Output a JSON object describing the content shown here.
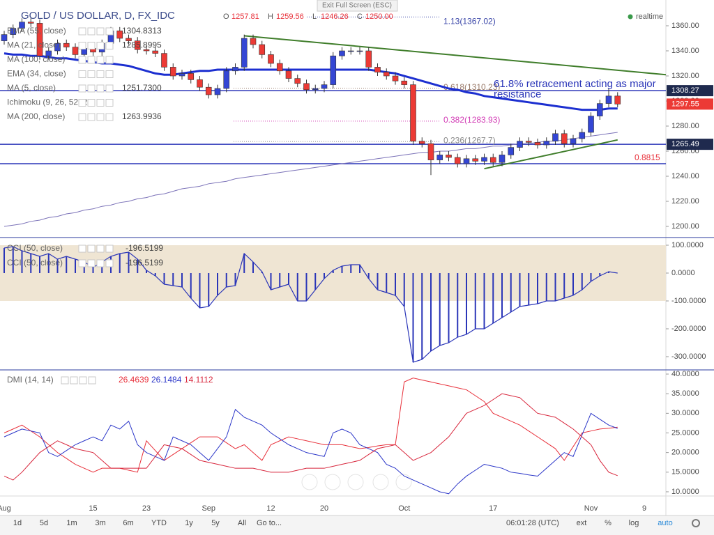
{
  "ui": {
    "exit_button": "Exit Full Screen (ESC)",
    "realtime": "realtime",
    "ohlc": [
      {
        "key": "O",
        "value": "1257.81"
      },
      {
        "key": "H",
        "value": "1259.56"
      },
      {
        "key": "L",
        "value": "1246.26"
      },
      {
        "key": "C",
        "value": "1250.00"
      }
    ],
    "indicators": [
      {
        "name": "EMA (55, close)",
        "value": "1304.8313"
      },
      {
        "name": "MA (21, close)",
        "value": "1285.8995"
      },
      {
        "name": "MA (100, close)"
      },
      {
        "name": "EMA (34, close)"
      },
      {
        "name": "MA (5, close)",
        "value": "1251.7300"
      },
      {
        "name": "Ichimoku (9, 26, 52, 26)"
      },
      {
        "name": "MA (200, close)",
        "value": "1263.9936"
      }
    ],
    "cci_legend": [
      {
        "name": "CCI (50, close)",
        "value": "-196.5199"
      },
      {
        "name": "CCI (50, close)",
        "value": "-196.5199"
      }
    ],
    "dmi_legend": "DMI (14, 14)",
    "ranges": [
      "1d",
      "5d",
      "1m",
      "3m",
      "6m",
      "YTD",
      "1y",
      "5y",
      "All"
    ],
    "goto": "Go to...",
    "clock": "06:01:28 (UTC)",
    "options": [
      "ext",
      "%",
      "log",
      "auto"
    ]
  },
  "chart_data": [
    {
      "type": "candlestick",
      "title": "GOLD / US DOLLAR, D, FX_IDC",
      "categories": [
        "Aug",
        null,
        null,
        null,
        null,
        null,
        null,
        null,
        null,
        null,
        "15",
        null,
        null,
        null,
        null,
        null,
        "23",
        null,
        null,
        null,
        null,
        null,
        null,
        "Sep",
        null,
        null,
        null,
        null,
        null,
        null,
        "12",
        null,
        null,
        null,
        null,
        null,
        "20",
        null,
        null,
        null,
        null,
        null,
        null,
        null,
        null,
        "Oct",
        null,
        null,
        null,
        null,
        null,
        null,
        null,
        null,
        null,
        "17",
        null,
        null,
        null,
        null,
        null,
        null,
        null,
        null,
        null,
        null,
        "Nov",
        null,
        null,
        null,
        null,
        null,
        "9"
      ],
      "open": [
        1348,
        1353,
        1358,
        1363,
        1362,
        1336,
        1340,
        1346,
        1343,
        1337,
        1342,
        1339,
        1346,
        1356,
        1350,
        1348,
        1341,
        1340,
        1338,
        1327,
        1320,
        1322,
        1317,
        1311,
        1305,
        1310,
        1324,
        1327,
        1350,
        1345,
        1337,
        1330,
        1324,
        1318,
        1314,
        1309,
        1310,
        1313,
        1336,
        1340,
        1340,
        1340,
        1327,
        1323,
        1320,
        1316,
        1313,
        1268,
        1266,
        1253,
        1257,
        1255,
        1250,
        1254,
        1252,
        1255,
        1251,
        1257,
        1263,
        1268,
        1267,
        1265,
        1268,
        1274,
        1266,
        1270,
        1275,
        1288,
        1298,
        1304,
        null,
        null,
        null
      ],
      "high": [
        1356,
        1361,
        1366,
        1366,
        1365,
        1343,
        1349,
        1349,
        1346,
        1345,
        1345,
        1349,
        1359,
        1359,
        1353,
        1351,
        1344,
        1343,
        1341,
        1330,
        1325,
        1325,
        1320,
        1314,
        1313,
        1327,
        1330,
        1353,
        1353,
        1348,
        1340,
        1333,
        1327,
        1321,
        1317,
        1313,
        1316,
        1339,
        1343,
        1343,
        1343,
        1343,
        1330,
        1326,
        1323,
        1319,
        1316,
        1271,
        1269,
        1260,
        1260,
        1258,
        1257,
        1257,
        1258,
        1258,
        1260,
        1266,
        1271,
        1271,
        1270,
        1271,
        1277,
        1277,
        1273,
        1278,
        1291,
        1301,
        1310,
        1307,
        null,
        null,
        null
      ],
      "low": [
        1345,
        1350,
        1355,
        1359,
        1333,
        1333,
        1337,
        1340,
        1334,
        1334,
        1336,
        1336,
        1343,
        1347,
        1345,
        1338,
        1337,
        1335,
        1324,
        1317,
        1317,
        1314,
        1308,
        1302,
        1302,
        1307,
        1321,
        1324,
        1342,
        1334,
        1327,
        1321,
        1315,
        1311,
        1306,
        1306,
        1307,
        1310,
        1333,
        1337,
        1337,
        1324,
        1320,
        1317,
        1313,
        1310,
        1265,
        1263,
        1241,
        1250,
        1252,
        1247,
        1247,
        1249,
        1249,
        1248,
        1248,
        1254,
        1260,
        1264,
        1262,
        1262,
        1265,
        1263,
        1263,
        1267,
        1272,
        1285,
        1295,
        1295,
        null,
        null,
        null
      ],
      "close": [
        1353,
        1358,
        1363,
        1362,
        1336,
        1340,
        1346,
        1343,
        1337,
        1342,
        1339,
        1346,
        1356,
        1350,
        1348,
        1341,
        1340,
        1338,
        1327,
        1320,
        1322,
        1317,
        1311,
        1305,
        1310,
        1324,
        1327,
        1350,
        1345,
        1337,
        1330,
        1324,
        1318,
        1314,
        1309,
        1310,
        1313,
        1336,
        1340,
        1340,
        1340,
        1327,
        1323,
        1320,
        1316,
        1313,
        1268,
        1266,
        1253,
        1257,
        1255,
        1250,
        1254,
        1252,
        1255,
        1251,
        1257,
        1263,
        1268,
        1267,
        1265,
        1268,
        1274,
        1266,
        1270,
        1275,
        1288,
        1298,
        1304,
        1297.55,
        null,
        null,
        null
      ],
      "up_color": "#3446d4",
      "down_color": "#ec3a35",
      "lines": [
        {
          "color": "#1c2fd0",
          "width": 3,
          "values": [
            1338,
            1337,
            1337,
            1336,
            1336,
            1335,
            1334,
            1334,
            1333,
            1332,
            1331,
            1330,
            1330,
            1329,
            1328,
            1326,
            1324,
            1322,
            1321,
            1321,
            1322,
            1323,
            1324,
            1324,
            1325,
            1325,
            1325,
            1325,
            1325,
            1325,
            1325,
            1325,
            1325,
            1325,
            1325,
            1325,
            1325,
            1325,
            1325,
            1325,
            1325,
            1325,
            1324,
            1323,
            1322,
            1320,
            1318,
            1316,
            1314,
            1312,
            1310,
            1309,
            1307,
            1306,
            1304,
            1303,
            1302,
            1301,
            1300,
            1299,
            1298,
            1297,
            1296,
            1295,
            1294,
            1293,
            1293,
            1293,
            1294,
            1294,
            null,
            null,
            null
          ]
        },
        {
          "color": "#7b72b8",
          "width": 1,
          "values": [
            1200,
            1201,
            1202,
            1204,
            1205,
            1207,
            1208,
            1210,
            1211,
            1213,
            1214,
            1216,
            1217,
            1219,
            1220,
            1222,
            1223,
            1225,
            1226,
            1228,
            1230,
            1231,
            1232,
            1234,
            1235,
            1236,
            1238,
            1239,
            1240,
            1241,
            1242,
            1243,
            1244,
            1245,
            1246,
            1247,
            1248,
            1249,
            1250,
            1251,
            1252,
            1253,
            1254,
            1255,
            1256,
            1257,
            1258,
            1259,
            1259,
            1260,
            1260,
            1261,
            1262,
            1262,
            1263,
            1264,
            1264,
            1265,
            1266,
            1266,
            1267,
            1268,
            1268,
            1269,
            1270,
            1271,
            1272,
            1273,
            1274,
            1275,
            null,
            null,
            null
          ]
        }
      ],
      "hlines": [
        1308.27,
        1265.49,
        1250
      ],
      "hline_color": "#2a35b8",
      "price_tags": [
        1308.27,
        1297.55,
        1265.49
      ],
      "price_tag_colors": [
        "#1f2a4e",
        "#ec3a35",
        "#1f2a4e"
      ],
      "fib_levels": [
        {
          "label": "1.13(1367.02)",
          "value": 1367.02,
          "color": "#3a46a8"
        },
        {
          "label": "0.618(1310.23)",
          "value": 1310.23,
          "color": "#9a7b6a"
        },
        {
          "label": "0.382(1283.93)",
          "value": 1283.93,
          "color": "#d23bb5"
        },
        {
          "label": "0.236(1267.7)",
          "value": 1267.7,
          "color": "#8a8a8a"
        }
      ],
      "trendlines": [
        {
          "values": [
            1352,
            1321
          ],
          "color": "#3f7d2a"
        },
        {
          "values": [
            1246,
            1269
          ],
          "color": "#3f7d2a"
        }
      ],
      "annotation": "61.8% retracement  acting as major resistance",
      "level_label": "0.8815",
      "ylim": [
        1191.67,
        1380.56
      ],
      "yticks": [
        {
          "value": 1200,
          "label": "1200.00"
        },
        {
          "value": 1220,
          "label": "1220.00"
        },
        {
          "value": 1240,
          "label": "1240.00"
        },
        {
          "value": 1260,
          "label": "1260.00"
        },
        {
          "value": 1280,
          "label": "1280.00"
        },
        {
          "value": 1300,
          "label": "1300.00"
        },
        {
          "value": 1320,
          "label": "1320.00"
        },
        {
          "value": 1340,
          "label": "1340.00"
        },
        {
          "value": 1360,
          "label": "1360.00"
        }
      ]
    },
    {
      "type": "bar",
      "color": "#2a35b8",
      "band": [
        -100,
        100
      ],
      "band_color": "#efe5d3",
      "values": [
        90,
        95,
        80,
        70,
        60,
        70,
        50,
        60,
        50,
        40,
        20,
        40,
        60,
        70,
        75,
        50,
        10,
        -10,
        -40,
        -45,
        -50,
        -90,
        -125,
        -120,
        -80,
        -50,
        -45,
        70,
        40,
        5,
        -60,
        -50,
        -40,
        -100,
        -100,
        -60,
        -20,
        10,
        25,
        30,
        30,
        -20,
        -60,
        -70,
        -80,
        -120,
        -320,
        -310,
        -280,
        -260,
        -250,
        -230,
        -220,
        -200,
        -200,
        -180,
        -160,
        -140,
        -120,
        -115,
        -110,
        -100,
        -100,
        -90,
        -80,
        -60,
        -30,
        -10,
        5,
        0,
        null,
        null,
        null
      ],
      "ylim": [
        -345,
        125
      ],
      "yticks": [
        {
          "value": 100,
          "label": "100.0000"
        },
        {
          "value": 0,
          "label": "0.0000"
        },
        {
          "value": -100,
          "label": "-100.0000"
        },
        {
          "value": -200,
          "label": "-200.0000"
        },
        {
          "value": -300,
          "label": "-300.0000"
        }
      ]
    },
    {
      "type": "line",
      "series": [
        {
          "color": "#e8303a",
          "values": [
            25,
            26,
            27,
            25.5,
            24,
            22,
            20,
            18.5,
            17,
            16,
            15,
            16,
            16,
            16,
            15.5,
            15,
            23,
            20.5,
            18,
            19.5,
            21,
            22.5,
            24,
            24,
            24,
            22.5,
            21,
            22,
            20,
            18,
            22,
            23,
            24,
            23.5,
            23,
            22.5,
            22,
            22,
            22,
            21.5,
            21,
            21.3,
            21.7,
            22,
            22,
            38,
            39,
            38.5,
            38,
            37.5,
            37,
            36.5,
            36,
            34.5,
            33,
            30,
            29,
            28,
            27,
            25.5,
            24,
            22.5,
            21,
            18,
            21.5,
            25,
            25.5,
            26,
            26.2,
            26.4639,
            null,
            null,
            null
          ]
        },
        {
          "color": "#2a35c8",
          "values": [
            24,
            25,
            26,
            25.5,
            25,
            20,
            19,
            20.5,
            22,
            23,
            24,
            23,
            27,
            26,
            28,
            22,
            20,
            19,
            18,
            24,
            23,
            22,
            20,
            18,
            21,
            24,
            31,
            29,
            28,
            27,
            25,
            23.5,
            22,
            21,
            20,
            19.5,
            19,
            25,
            26,
            25,
            22,
            21,
            20,
            17,
            16,
            14,
            13,
            12,
            11,
            10,
            9.5,
            12,
            14,
            15.5,
            17,
            16.5,
            16,
            15,
            14.7,
            14.3,
            14,
            16,
            18,
            20,
            19,
            24.5,
            30,
            28.5,
            27,
            26.1484,
            null,
            null,
            null
          ]
        },
        {
          "color": "#d8263c",
          "values": [
            14,
            13,
            15,
            17.5,
            20,
            21.5,
            23,
            22,
            21,
            20.5,
            20,
            18,
            16,
            16,
            16,
            16,
            16,
            19,
            22,
            21.5,
            21,
            19.5,
            18,
            17.5,
            17,
            16.5,
            16,
            16,
            16,
            15.5,
            15,
            15,
            15,
            15.5,
            16,
            16,
            16,
            16.5,
            17,
            17.5,
            18,
            19.5,
            21,
            21.5,
            22,
            20,
            18,
            19,
            20,
            22,
            24,
            27,
            30,
            31,
            32,
            33.5,
            35,
            34.5,
            34,
            32,
            30,
            29.5,
            29,
            27.5,
            26,
            24,
            22,
            18,
            15,
            14.1112,
            null,
            null,
            null
          ]
        }
      ],
      "ylim": [
        8.93,
        40.89
      ],
      "yticks": [
        {
          "value": 10,
          "label": "10.0000"
        },
        {
          "value": 15,
          "label": "15.0000"
        },
        {
          "value": 20,
          "label": "20.0000"
        },
        {
          "value": 25,
          "label": "25.0000"
        },
        {
          "value": 30,
          "label": "30.0000"
        },
        {
          "value": 35,
          "label": "35.0000"
        },
        {
          "value": 40,
          "label": "40.0000"
        }
      ]
    }
  ]
}
